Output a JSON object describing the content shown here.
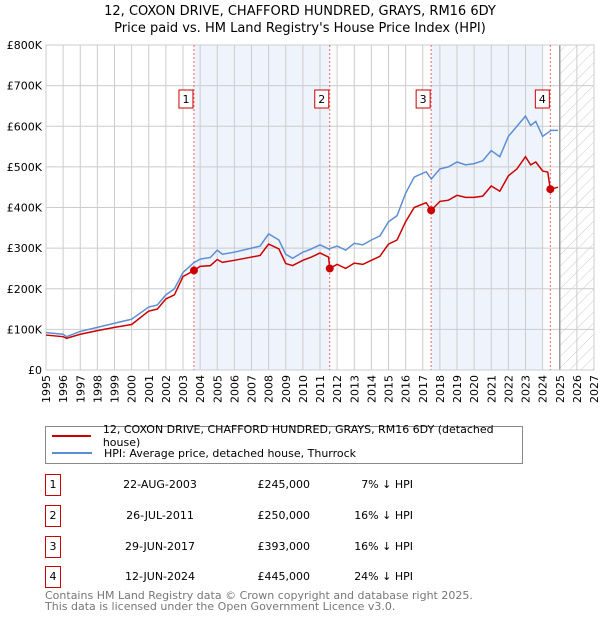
{
  "chart_data": {
    "type": "line",
    "title": "12, COXON DRIVE, CHAFFORD HUNDRED, GRAYS, RM16 6DY",
    "subtitle": "Price paid vs. HM Land Registry's House Price Index (HPI)",
    "xlim": [
      1995,
      2027
    ],
    "ylim": [
      0,
      800000
    ],
    "x_ticks": [
      "1995",
      "1996",
      "1997",
      "1998",
      "1999",
      "2000",
      "2001",
      "2002",
      "2003",
      "2004",
      "2005",
      "2006",
      "2007",
      "2008",
      "2009",
      "2010",
      "2011",
      "2012",
      "2013",
      "2014",
      "2015",
      "2016",
      "2017",
      "2018",
      "2019",
      "2020",
      "2021",
      "2022",
      "2023",
      "2024",
      "2025",
      "2026",
      "2027"
    ],
    "y_ticks": [
      {
        "v": 0,
        "label": "£0"
      },
      {
        "v": 100000,
        "label": "£100K"
      },
      {
        "v": 200000,
        "label": "£200K"
      },
      {
        "v": 300000,
        "label": "£300K"
      },
      {
        "v": 400000,
        "label": "£400K"
      },
      {
        "v": 500000,
        "label": "£500K"
      },
      {
        "v": 600000,
        "label": "£600K"
      },
      {
        "v": 700000,
        "label": "£700K"
      },
      {
        "v": 800000,
        "label": "£800K"
      }
    ],
    "grid": true,
    "forecast_start": 2025.0,
    "series": [
      {
        "name": "12, COXON DRIVE, CHAFFORD HUNDRED, GRAYS, RM16 6DY (detached house)",
        "color": "#cc0000",
        "x": [
          1995,
          1996,
          1996.2,
          1997,
          1998,
          1999,
          2000,
          2001,
          2001.5,
          2002,
          2002.5,
          2003,
          2003.64,
          2004,
          2004.6,
          2005,
          2005.3,
          2006,
          2007,
          2007.5,
          2008,
          2008.6,
          2009,
          2009.4,
          2010,
          2010.5,
          2011,
          2011.5,
          2011.57,
          2012,
          2012.5,
          2013,
          2013.5,
          2014,
          2014.5,
          2015,
          2015.5,
          2016,
          2016.5,
          2017.2,
          2017.49,
          2018,
          2018.5,
          2019,
          2019.5,
          2020,
          2020.5,
          2021,
          2021.5,
          2022,
          2022.5,
          2023,
          2023.3,
          2023.6,
          2024,
          2024.3,
          2024.45,
          2024.9
        ],
        "y": [
          86000,
          82000,
          78000,
          88000,
          97000,
          105000,
          112000,
          145000,
          150000,
          175000,
          185000,
          230000,
          245000,
          255000,
          257000,
          272000,
          265000,
          270000,
          278000,
          282000,
          310000,
          298000,
          262000,
          257000,
          270000,
          278000,
          288000,
          278000,
          250000,
          260000,
          250000,
          263000,
          260000,
          270000,
          280000,
          310000,
          320000,
          365000,
          400000,
          412000,
          393000,
          415000,
          418000,
          430000,
          425000,
          425000,
          428000,
          453000,
          440000,
          478000,
          495000,
          525000,
          505000,
          512000,
          490000,
          487000,
          445000,
          450000
        ]
      },
      {
        "name": "HPI: Average price, detached house, Thurrock",
        "color": "#5b8fd4",
        "x": [
          1995,
          1996,
          1996.2,
          1997,
          1998,
          1999,
          2000,
          2001,
          2001.5,
          2002,
          2002.5,
          2003,
          2003.6,
          2004,
          2004.6,
          2005,
          2005.3,
          2006,
          2007,
          2007.5,
          2008,
          2008.6,
          2009,
          2009.4,
          2010,
          2010.5,
          2011,
          2011.5,
          2012,
          2012.5,
          2013,
          2013.5,
          2014,
          2014.5,
          2015,
          2015.5,
          2016,
          2016.5,
          2017.2,
          2017.5,
          2018,
          2018.5,
          2019,
          2019.5,
          2020,
          2020.5,
          2021,
          2021.5,
          2022,
          2022.5,
          2023,
          2023.3,
          2023.6,
          2024,
          2024.5,
          2024.9
        ],
        "y": [
          92000,
          88000,
          82000,
          95000,
          105000,
          115000,
          125000,
          155000,
          160000,
          185000,
          200000,
          240000,
          263000,
          273000,
          277000,
          295000,
          285000,
          290000,
          300000,
          305000,
          335000,
          320000,
          285000,
          275000,
          290000,
          298000,
          308000,
          298000,
          305000,
          295000,
          312000,
          308000,
          320000,
          330000,
          365000,
          380000,
          435000,
          475000,
          488000,
          470000,
          495000,
          500000,
          512000,
          505000,
          508000,
          515000,
          540000,
          525000,
          575000,
          600000,
          625000,
          602000,
          612000,
          575000,
          590000,
          590000
        ]
      }
    ],
    "shaded_ranges": [
      [
        2003.64,
        2011.57
      ],
      [
        2017.49,
        2024.0
      ]
    ],
    "sales": [
      {
        "n": "1",
        "x": 2003.64,
        "y": 245000,
        "date": "22-AUG-2003",
        "price": "£245,000",
        "hpi": "7% ↓ HPI"
      },
      {
        "n": "2",
        "x": 2011.57,
        "y": 250000,
        "date": "26-JUL-2011",
        "price": "£250,000",
        "hpi": "16% ↓ HPI"
      },
      {
        "n": "3",
        "x": 2017.49,
        "y": 393000,
        "date": "29-JUN-2017",
        "price": "£393,000",
        "hpi": "16% ↓ HPI"
      },
      {
        "n": "4",
        "x": 2024.45,
        "y": 445000,
        "date": "12-JUN-2024",
        "price": "£445,000",
        "hpi": "24% ↓ HPI"
      }
    ]
  },
  "footer": {
    "line1": "Contains HM Land Registry data © Crown copyright and database right 2025.",
    "line2": "This data is licensed under the Open Government Licence v3.0."
  }
}
